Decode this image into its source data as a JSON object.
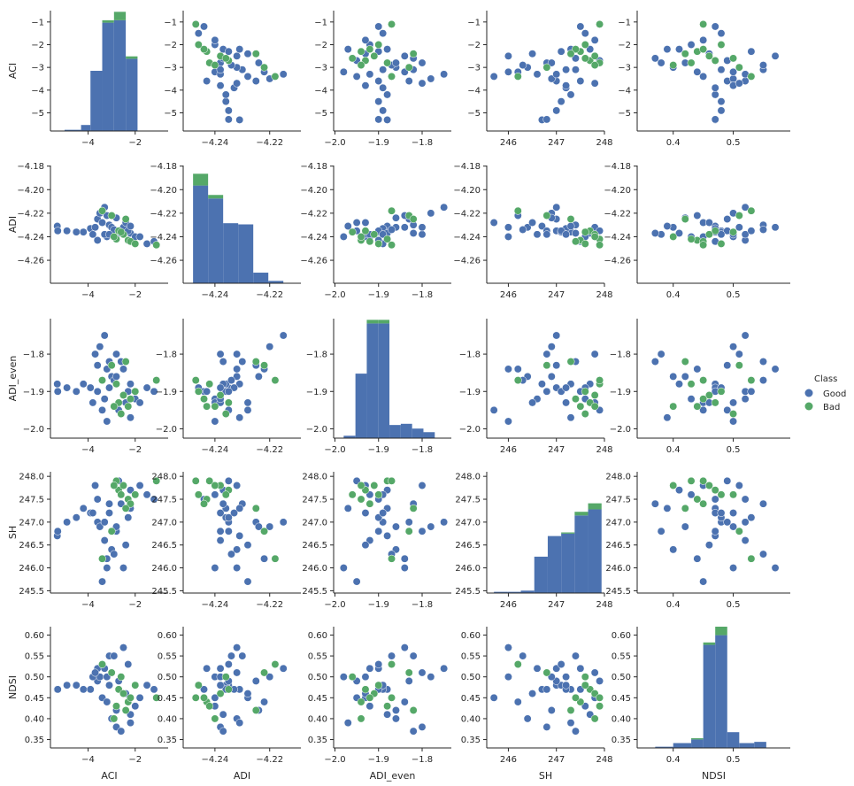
{
  "chart_data": {
    "type": "scatter",
    "variables": [
      "ACI",
      "ADI",
      "ADI_even",
      "SH",
      "NDSI"
    ],
    "legend": {
      "title": "Class",
      "placement": "right",
      "entries": [
        {
          "label": "Good",
          "color": "#4c72b0"
        },
        {
          "label": "Bad",
          "color": "#55a868"
        }
      ]
    },
    "grid": false,
    "axes": {
      "ACI": {
        "range": [
          -5.8,
          -0.5
        ],
        "ticks": [
          -1,
          -2,
          -3,
          -4,
          -5
        ],
        "tick_labels": [
          "−1",
          "−2",
          "−3",
          "−4",
          "−5"
        ],
        "hist_range": [
          -5.6,
          -0.6
        ],
        "hist_ticks": [
          -4,
          -2
        ],
        "hist_tick_labels": [
          "−4",
          "−2"
        ]
      },
      "ADI": {
        "range": [
          -4.2795,
          -4.1795
        ],
        "ticks": [
          -4.18,
          -4.2,
          -4.22,
          -4.24,
          -4.26
        ],
        "tick_labels": [
          "−4.18",
          "−4.20",
          "−4.22",
          "−4.24",
          "−4.26"
        ],
        "hist_range": [
          -4.2516,
          -4.2086
        ],
        "hist_ticks": [
          -4.24,
          -4.22
        ],
        "hist_tick_labels": [
          "−4.24",
          "−4.22"
        ]
      },
      "ADI_even": {
        "range": [
          -2.025,
          -1.705
        ],
        "ticks": [
          -1.8,
          -1.9,
          -2.0
        ],
        "tick_labels": [
          "−1.8",
          "−1.9",
          "−2.0"
        ],
        "hist_range": [
          -2.003,
          -1.733
        ],
        "hist_ticks": [
          -2.0,
          -1.9,
          -1.8
        ],
        "hist_tick_labels": [
          "−2.0",
          "−1.9",
          "−1.8"
        ]
      },
      "SH": {
        "range": [
          245.45,
          248.1
        ],
        "ticks": [
          245.5,
          246.0,
          246.5,
          247.0,
          247.5,
          248.0
        ],
        "tick_labels": [
          "245.5",
          "246.0",
          "246.5",
          "247.0",
          "247.5",
          "248.0"
        ],
        "hist_range": [
          245.55,
          248.0
        ],
        "hist_ticks": [
          246,
          247,
          248
        ],
        "hist_tick_labels": [
          "246",
          "247",
          "248"
        ]
      },
      "NDSI": {
        "range": [
          0.33,
          0.62
        ],
        "ticks": [
          0.35,
          0.4,
          0.45,
          0.5,
          0.55,
          0.6
        ],
        "tick_labels": [
          "0.35",
          "0.40",
          "0.45",
          "0.50",
          "0.55",
          "0.60"
        ],
        "hist_range": [
          0.34,
          0.595
        ],
        "hist_ticks": [
          0.4,
          0.5
        ],
        "hist_tick_labels": [
          "0.4",
          "0.5"
        ]
      }
    },
    "histograms": {
      "ACI": {
        "edges": [
          -5.0,
          -4.3,
          -3.9,
          -3.4,
          -2.9,
          -2.4,
          -1.9
        ],
        "good": [
          0.01,
          0.05,
          0.5,
          0.9,
          0.92,
          0.6
        ],
        "bad": [
          0,
          0,
          0,
          0.02,
          0.07,
          0.02
        ]
      },
      "ADI": {
        "edges": [
          -4.248,
          -4.2425,
          -4.237,
          -4.2315,
          -4.226,
          -4.2205,
          -4.215
        ],
        "good": [
          0.83,
          0.72,
          0.51,
          0.5,
          0.09,
          0.02
        ],
        "bad": [
          0.1,
          0.03,
          0,
          0,
          0,
          0
        ]
      },
      "ADI_even": {
        "edges": [
          -1.98,
          -1.953,
          -1.927,
          -1.901,
          -1.875,
          -1.849,
          -1.823,
          -1.797,
          -1.771
        ],
        "good": [
          0.02,
          0.54,
          0.96,
          0.96,
          0.11,
          0.12,
          0.08,
          0.05
        ],
        "bad": [
          0,
          0,
          0.03,
          0.03,
          0,
          0,
          0,
          0
        ]
      },
      "SH": {
        "edges": [
          245.7,
          245.98,
          246.26,
          246.54,
          246.82,
          247.1,
          247.38,
          247.66,
          247.94
        ],
        "good": [
          0.01,
          0.01,
          0.02,
          0.3,
          0.47,
          0.49,
          0.64,
          0.69
        ],
        "bad": [
          0,
          0,
          0,
          0,
          0,
          0.01,
          0.03,
          0.05
        ]
      },
      "NDSI": {
        "edges": [
          0.37,
          0.4,
          0.43,
          0.45,
          0.47,
          0.49,
          0.51,
          0.535,
          0.555,
          0.58
        ],
        "good": [
          0.01,
          0.04,
          0.07,
          0.85,
          0.93,
          0.13,
          0.04,
          0.05,
          0
        ],
        "bad": [
          0,
          0,
          0.01,
          0.02,
          0.07,
          0,
          0,
          0,
          0
        ]
      }
    },
    "points": {
      "good": [
        [
          -5.31,
          -4.231,
          -1.88,
          246.7,
          0.47
        ],
        [
          -5.29,
          -4.235,
          -1.9,
          246.8,
          0.47
        ],
        [
          -4.9,
          -4.235,
          -1.89,
          247.0,
          0.48
        ],
        [
          -4.5,
          -4.236,
          -1.9,
          247.1,
          0.48
        ],
        [
          -4.2,
          -4.236,
          -1.88,
          247.3,
          0.47
        ],
        [
          -3.9,
          -4.233,
          -1.89,
          247.2,
          0.47
        ],
        [
          -3.6,
          -4.225,
          -1.83,
          247.0,
          0.49
        ],
        [
          -3.5,
          -4.22,
          -1.78,
          246.9,
          0.5
        ],
        [
          -3.3,
          -4.215,
          -1.75,
          247.0,
          0.52
        ],
        [
          -3.1,
          -4.23,
          -1.82,
          247.4,
          0.55
        ],
        [
          -3.2,
          -4.24,
          -1.98,
          246.0,
          0.5
        ],
        [
          -3.4,
          -4.228,
          -1.95,
          245.7,
          0.45
        ],
        [
          -3.0,
          -4.232,
          -1.86,
          246.4,
          0.4
        ],
        [
          -2.8,
          -4.238,
          -1.8,
          246.8,
          0.38
        ],
        [
          -2.6,
          -4.237,
          -1.82,
          247.4,
          0.37
        ],
        [
          -2.2,
          -4.237,
          -1.88,
          247.7,
          0.41
        ],
        [
          -2.0,
          -4.24,
          -1.92,
          247.6,
          0.43
        ],
        [
          -1.8,
          -4.24,
          -1.93,
          247.8,
          0.45
        ],
        [
          -1.5,
          -4.246,
          -1.89,
          247.6,
          0.48
        ],
        [
          -1.2,
          -4.244,
          -1.9,
          247.5,
          0.47
        ],
        [
          -3.6,
          -4.243,
          -1.9,
          247.5,
          0.52
        ],
        [
          -3.8,
          -4.238,
          -1.93,
          247.2,
          0.5
        ],
        [
          -3.3,
          -4.238,
          -1.92,
          246.6,
          0.52
        ],
        [
          -2.9,
          -4.234,
          -1.87,
          246.3,
          0.55
        ],
        [
          -2.5,
          -4.232,
          -1.84,
          246.0,
          0.57
        ],
        [
          -2.3,
          -4.235,
          -1.9,
          247.1,
          0.53
        ],
        [
          -3.7,
          -4.232,
          -1.8,
          247.8,
          0.51
        ],
        [
          -2.7,
          -4.235,
          -1.95,
          247.9,
          0.49
        ],
        [
          -3.1,
          -4.238,
          -1.89,
          247.2,
          0.48
        ],
        [
          -2.4,
          -4.228,
          -1.93,
          246.5,
          0.46
        ],
        [
          -3.2,
          -4.222,
          -1.84,
          246.2,
          0.44
        ],
        [
          -2.8,
          -4.224,
          -1.86,
          246.9,
          0.42
        ],
        [
          -2.2,
          -4.231,
          -1.97,
          247.3,
          0.39
        ]
      ],
      "bad": [
        [
          -2.7,
          -4.235,
          -1.93,
          247.7,
          0.47
        ],
        [
          -2.5,
          -4.238,
          -1.91,
          247.8,
          0.46
        ],
        [
          -2.3,
          -4.243,
          -1.94,
          247.5,
          0.44
        ],
        [
          -2.2,
          -4.244,
          -1.92,
          247.4,
          0.45
        ],
        [
          -2.0,
          -4.246,
          -1.9,
          247.6,
          0.48
        ],
        [
          -2.8,
          -4.242,
          -1.88,
          247.9,
          0.43
        ],
        [
          -2.6,
          -4.236,
          -1.96,
          247.6,
          0.5
        ],
        [
          -3.0,
          -4.222,
          -1.83,
          246.8,
          0.51
        ],
        [
          -3.4,
          -4.218,
          -1.87,
          246.2,
          0.53
        ],
        [
          -1.1,
          -4.247,
          -1.87,
          247.9,
          0.45
        ],
        [
          -2.4,
          -4.225,
          -1.82,
          247.3,
          0.42
        ],
        [
          -2.9,
          -4.24,
          -1.94,
          247.8,
          0.4
        ]
      ]
    }
  }
}
